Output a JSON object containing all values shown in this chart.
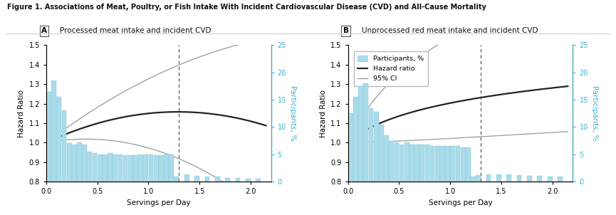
{
  "title": "Figure 1. Associations of Meat, Poultry, or Fish Intake With Incident Cardiovascular Disease (CVD) and All-Cause Mortality",
  "panel_A_label": "A",
  "panel_B_label": "B",
  "panel_A_title": "Processed meat intake and incident CVD",
  "panel_B_title": "Unprocessed red meat intake and incident CVD",
  "xlabel": "Servings per Day",
  "ylabel_left": "Hazard Ratio",
  "ylabel_right": "Participants, %",
  "xlim": [
    0,
    2.2
  ],
  "ylim_left": [
    0.8,
    1.5
  ],
  "ylim_right": [
    0,
    25
  ],
  "yticks_left": [
    0.8,
    0.9,
    1.0,
    1.1,
    1.2,
    1.3,
    1.4,
    1.5
  ],
  "yticks_right": [
    0,
    5,
    10,
    15,
    20,
    25
  ],
  "dashed_line_x": 1.3,
  "bar_color": "#aadcea",
  "bar_edge_color": "#88c8dc",
  "hr_color": "#222222",
  "ci_color": "#999999",
  "panel_A_bars_x": [
    0.025,
    0.075,
    0.125,
    0.175,
    0.225,
    0.275,
    0.325,
    0.375,
    0.425,
    0.475,
    0.525,
    0.575,
    0.625,
    0.675,
    0.725,
    0.775,
    0.825,
    0.875,
    0.925,
    0.975,
    1.025,
    1.075,
    1.125,
    1.175,
    1.225,
    1.275,
    1.375,
    1.475,
    1.575,
    1.675,
    1.775,
    1.875,
    1.975,
    2.075
  ],
  "panel_A_bars_h": [
    16.5,
    18.5,
    15.5,
    13.0,
    7.0,
    6.8,
    7.2,
    6.8,
    5.5,
    5.2,
    5.0,
    5.0,
    5.2,
    5.0,
    5.0,
    4.8,
    4.8,
    4.8,
    5.0,
    5.0,
    5.0,
    4.8,
    4.8,
    5.0,
    5.0,
    1.0,
    1.3,
    1.1,
    1.0,
    1.0,
    0.7,
    0.7,
    0.6,
    0.6
  ],
  "panel_B_bars_x": [
    0.025,
    0.075,
    0.125,
    0.175,
    0.225,
    0.275,
    0.325,
    0.375,
    0.425,
    0.475,
    0.525,
    0.575,
    0.625,
    0.675,
    0.725,
    0.775,
    0.825,
    0.875,
    0.925,
    0.975,
    1.025,
    1.075,
    1.125,
    1.175,
    1.225,
    1.275,
    1.375,
    1.475,
    1.575,
    1.675,
    1.775,
    1.875,
    1.975,
    2.075
  ],
  "panel_B_bars_h": [
    12.5,
    15.5,
    17.5,
    18.0,
    13.5,
    12.8,
    10.5,
    8.5,
    7.5,
    7.2,
    6.8,
    7.2,
    6.8,
    6.8,
    6.8,
    6.8,
    6.5,
    6.5,
    6.5,
    6.5,
    6.5,
    6.5,
    6.3,
    6.3,
    1.0,
    1.2,
    1.3,
    1.3,
    1.3,
    1.2,
    1.1,
    1.1,
    1.0,
    0.9
  ],
  "legend_items": [
    "Participants, %",
    "Hazard ratio",
    "95% CI"
  ],
  "background_color": "#ffffff",
  "title_line_color": "#cccccc"
}
